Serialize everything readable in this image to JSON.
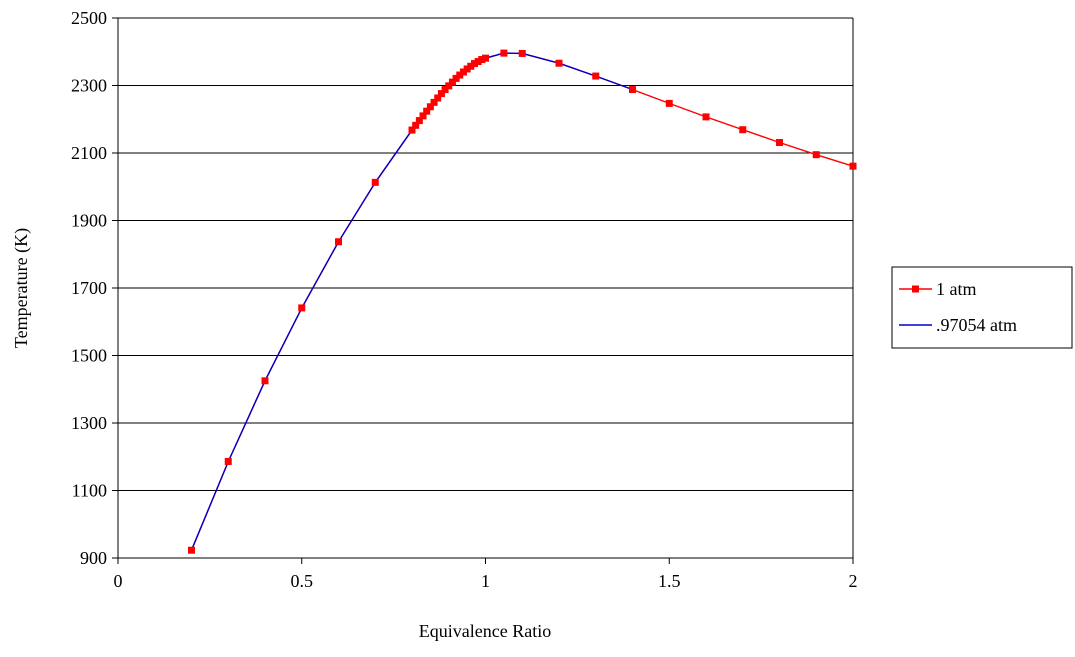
{
  "chart_data": {
    "type": "line",
    "title": "",
    "xlabel": "Equivalence Ratio",
    "ylabel": "Temperature (K)",
    "xlim": [
      0,
      2
    ],
    "ylim": [
      900,
      2500
    ],
    "xticks": [
      0,
      0.5,
      1,
      1.5,
      2
    ],
    "xtick_labels": [
      "0",
      "0.5",
      "1",
      "1.5",
      "2"
    ],
    "yticks": [
      900,
      1100,
      1300,
      1500,
      1700,
      1900,
      2100,
      2300,
      2500
    ],
    "ytick_labels": [
      "900",
      "1100",
      "1300",
      "1500",
      "1700",
      "1900",
      "2100",
      "2300",
      "2500"
    ],
    "grid": "horizontal",
    "legend_position": "right",
    "series": [
      {
        "name": "1 atm",
        "color": "#ff0000",
        "marker": "square",
        "x": [
          0.2,
          0.3,
          0.4,
          0.5,
          0.6,
          0.7,
          0.8,
          0.81,
          0.82,
          0.83,
          0.84,
          0.85,
          0.86,
          0.87,
          0.88,
          0.89,
          0.9,
          0.91,
          0.92,
          0.93,
          0.94,
          0.95,
          0.96,
          0.97,
          0.98,
          0.99,
          1.0,
          1.05,
          1.1,
          1.2,
          1.3,
          1.4,
          1.5,
          1.6,
          1.7,
          1.8,
          1.9,
          2.0
        ],
        "y": [
          923,
          1186,
          1425,
          1641,
          1837,
          2013,
          2168,
          2182,
          2196,
          2210,
          2224,
          2237,
          2250,
          2263,
          2276,
          2288,
          2299,
          2310,
          2321,
          2331,
          2340,
          2349,
          2357,
          2365,
          2371,
          2377,
          2381,
          2396,
          2395,
          2366,
          2328,
          2288,
          2247,
          2207,
          2169,
          2131,
          2095,
          2061
        ]
      },
      {
        "name": ".97054 atm",
        "color": "#0000cc",
        "marker": "none",
        "x": [
          0.2,
          0.3,
          0.4,
          0.5,
          0.6,
          0.7,
          0.8,
          0.85,
          0.9,
          0.95,
          1.0,
          1.05,
          1.1,
          1.2,
          1.3,
          1.4
        ],
        "y": [
          923,
          1186,
          1425,
          1641,
          1837,
          2013,
          2168,
          2237,
          2299,
          2349,
          2381,
          2396,
          2395,
          2366,
          2328,
          2288
        ]
      }
    ]
  }
}
